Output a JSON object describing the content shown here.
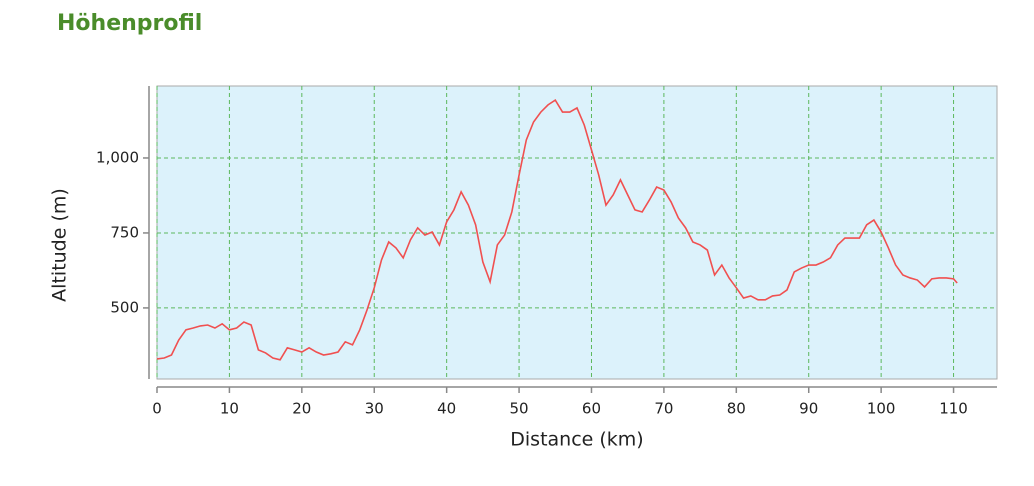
{
  "chart_data": {
    "type": "line",
    "title": "Höhenprofil",
    "x_label": "Distance (km)",
    "y_label": "Altitude (m)",
    "x": [
      0,
      1,
      2,
      3,
      4,
      5,
      6,
      7,
      8,
      9,
      10,
      11,
      12,
      13,
      14,
      15,
      16,
      17,
      18,
      19,
      20,
      21,
      22,
      23,
      24,
      25,
      26,
      27,
      28,
      29,
      30,
      31,
      32,
      33,
      34,
      35,
      36,
      37,
      38,
      39,
      40,
      41,
      42,
      43,
      44,
      45,
      46,
      47,
      48,
      49,
      50,
      51,
      52,
      53,
      54,
      55,
      56,
      57,
      58,
      59,
      60,
      61,
      62,
      63,
      64,
      65,
      66,
      67,
      68,
      69,
      70,
      71,
      72,
      73,
      74,
      75,
      76,
      77,
      78,
      79,
      80,
      81,
      82,
      83,
      84,
      85,
      86,
      87,
      88,
      89,
      90,
      91,
      92,
      93,
      94,
      95,
      96,
      97,
      98,
      99,
      100,
      101,
      102,
      103,
      104,
      105,
      106,
      107,
      108,
      109,
      110,
      110.5
    ],
    "series": [
      {
        "name": "Altitude",
        "color": "#f05050",
        "values": [
          330,
          333,
          343,
          393,
          427,
          433,
          440,
          443,
          433,
          447,
          427,
          433,
          453,
          443,
          360,
          350,
          333,
          327,
          367,
          360,
          353,
          367,
          353,
          343,
          347,
          353,
          387,
          377,
          427,
          493,
          567,
          660,
          720,
          700,
          667,
          727,
          767,
          743,
          753,
          710,
          787,
          827,
          887,
          843,
          777,
          653,
          587,
          710,
          743,
          820,
          943,
          1060,
          1120,
          1153,
          1177,
          1193,
          1153,
          1153,
          1167,
          1110,
          1027,
          943,
          843,
          877,
          927,
          877,
          827,
          820,
          860,
          903,
          893,
          853,
          800,
          767,
          720,
          710,
          693,
          610,
          643,
          600,
          567,
          533,
          540,
          527,
          527,
          540,
          543,
          560,
          620,
          633,
          643,
          643,
          653,
          667,
          710,
          733,
          733,
          733,
          777,
          793,
          753,
          700,
          643,
          610,
          600,
          593,
          570,
          597,
          600,
          600,
          597,
          583
        ]
      }
    ],
    "xlim": [
      0,
      116
    ],
    "ylim": [
      263,
      1240
    ],
    "xticks": [
      0,
      10,
      20,
      30,
      40,
      50,
      60,
      70,
      80,
      90,
      100,
      110
    ],
    "yticks": [
      500,
      750,
      {
        "value": 1000,
        "label": "1,000"
      }
    ],
    "grid": true,
    "background": "#dcf2fb"
  }
}
